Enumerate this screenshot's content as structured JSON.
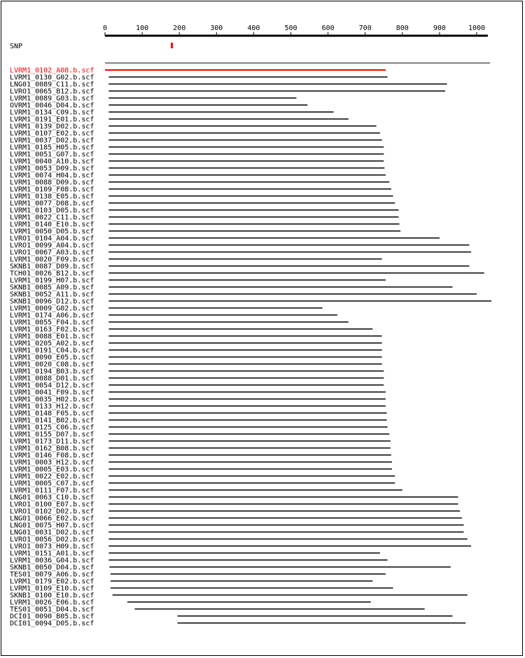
{
  "axis": {
    "ticks": [
      0,
      100,
      200,
      300,
      400,
      500,
      600,
      700,
      800,
      900,
      1000
    ],
    "max": 1030
  },
  "snp": {
    "label": "SNP",
    "position": 180,
    "color": "#ff0000"
  },
  "colors": {
    "highlight": "#ff0000",
    "default": "#000000"
  },
  "reads": [
    {
      "name": "LVRM1_0102_A08.b.scf",
      "start": 0,
      "end": 755,
      "highlight": true
    },
    {
      "name": "LVRM1_0130_G02.b.scf",
      "start": 10,
      "end": 760
    },
    {
      "name": "LNG01_0089_C11.b.scf",
      "start": 10,
      "end": 920
    },
    {
      "name": "LVRO1_0065_B12.b.scf",
      "start": 10,
      "end": 915
    },
    {
      "name": "LVRM1_0089_G03.b.scf",
      "start": 10,
      "end": 515
    },
    {
      "name": "OVRM1_0046_D04.b.scf",
      "start": 10,
      "end": 545
    },
    {
      "name": "LVRM1_0134_C09.b.scf",
      "start": 10,
      "end": 615
    },
    {
      "name": "LVRM1_0191_E01.b.scf",
      "start": 10,
      "end": 655
    },
    {
      "name": "LVRM1_0139_D02.b.scf",
      "start": 10,
      "end": 730
    },
    {
      "name": "LVRM1_0107_E02.b.scf",
      "start": 10,
      "end": 740
    },
    {
      "name": "LVRM1_0037_D02.b.scf",
      "start": 10,
      "end": 745
    },
    {
      "name": "LVRM1_0185_H05.b.scf",
      "start": 10,
      "end": 750
    },
    {
      "name": "LVRM1_0051_G07.b.scf",
      "start": 10,
      "end": 750
    },
    {
      "name": "LVRM1_0040_A10.b.scf",
      "start": 10,
      "end": 750
    },
    {
      "name": "LVRM1_0053_D09.b.scf",
      "start": 10,
      "end": 752
    },
    {
      "name": "LVRM1_0074_H04.b.scf",
      "start": 10,
      "end": 755
    },
    {
      "name": "LVRM1_0088_D09.b.scf",
      "start": 10,
      "end": 765
    },
    {
      "name": "LVRM1_0109_F08.b.scf",
      "start": 10,
      "end": 770
    },
    {
      "name": "LVRM1_0138_E05.b.scf",
      "start": 10,
      "end": 775
    },
    {
      "name": "LVRM1_0077_D08.b.scf",
      "start": 10,
      "end": 780
    },
    {
      "name": "LVRM1_0103_D05.b.scf",
      "start": 10,
      "end": 790
    },
    {
      "name": "LVRM1_0022_C11.b.scf",
      "start": 10,
      "end": 790
    },
    {
      "name": "LVRM1_0140_E10.b.scf",
      "start": 10,
      "end": 792
    },
    {
      "name": "LVRM1_0050_D05.b.scf",
      "start": 10,
      "end": 795
    },
    {
      "name": "LVRO1_0104_A04.b.scf",
      "start": 10,
      "end": 900
    },
    {
      "name": "LVRO1_0099_A04.b.scf",
      "start": 10,
      "end": 980
    },
    {
      "name": "LVRO1_0067_A03.b.scf",
      "start": 10,
      "end": 985
    },
    {
      "name": "LVRM1_0020_F09.b.scf",
      "start": 10,
      "end": 745
    },
    {
      "name": "SKNB1_0087_D09.b.scf",
      "start": 10,
      "end": 980
    },
    {
      "name": "TCH01_0026_B12.b.scf",
      "start": 10,
      "end": 1020
    },
    {
      "name": "LVRM1_0199_H07.b.scf",
      "start": 10,
      "end": 755
    },
    {
      "name": "SKNB1_0085_A09.b.scf",
      "start": 10,
      "end": 935
    },
    {
      "name": "SKNB1_0052_A11.b.scf",
      "start": 10,
      "end": 1000
    },
    {
      "name": "SKNB1_0096_D12.b.scf",
      "start": 10,
      "end": 1040
    },
    {
      "name": "LVRM1_0009_G02.b.scf",
      "start": 10,
      "end": 585
    },
    {
      "name": "LVRM1_0174_A06.b.scf",
      "start": 10,
      "end": 625
    },
    {
      "name": "LVRM1_0055_F04.b.scf",
      "start": 10,
      "end": 655
    },
    {
      "name": "LVRM1_0163_F02.b.scf",
      "start": 10,
      "end": 720
    },
    {
      "name": "LVRM1_0088_E01.b.scf",
      "start": 10,
      "end": 745
    },
    {
      "name": "LVRM1_0205_A02.b.scf",
      "start": 10,
      "end": 745
    },
    {
      "name": "LVRM1_0191_C04.b.scf",
      "start": 10,
      "end": 745
    },
    {
      "name": "LVRM1_0090_E05.b.scf",
      "start": 10,
      "end": 745
    },
    {
      "name": "LVRM1_0020_C08.b.scf",
      "start": 10,
      "end": 745
    },
    {
      "name": "LVRM1_0194_B03.b.scf",
      "start": 10,
      "end": 750
    },
    {
      "name": "LVRM1_0088_D01.b.scf",
      "start": 10,
      "end": 750
    },
    {
      "name": "LVRM1_0054_D12.b.scf",
      "start": 10,
      "end": 750
    },
    {
      "name": "LVRM1_0041_F09.b.scf",
      "start": 10,
      "end": 755
    },
    {
      "name": "LVRM1_0035_H02.b.scf",
      "start": 10,
      "end": 755
    },
    {
      "name": "LVRM1_0133_H12.b.scf",
      "start": 10,
      "end": 755
    },
    {
      "name": "LVRM1_0148_F05.b.scf",
      "start": 10,
      "end": 758
    },
    {
      "name": "LVRM1_0141_B02.b.scf",
      "start": 10,
      "end": 758
    },
    {
      "name": "LVRM1_0125_C06.b.scf",
      "start": 10,
      "end": 760
    },
    {
      "name": "LVRM1_0155_D07.b.scf",
      "start": 10,
      "end": 765
    },
    {
      "name": "LVRM1_0173_D11.b.scf",
      "start": 10,
      "end": 768
    },
    {
      "name": "LVRM1_0162_B08.b.scf",
      "start": 10,
      "end": 768
    },
    {
      "name": "LVRM1_0146_F08.b.scf",
      "start": 10,
      "end": 770
    },
    {
      "name": "LVRM1_0003_H12.b.scf",
      "start": 10,
      "end": 772
    },
    {
      "name": "LVRM1_0005_E03.b.scf",
      "start": 10,
      "end": 772
    },
    {
      "name": "LVRM1_0022_E02.b.scf",
      "start": 10,
      "end": 780
    },
    {
      "name": "LVRM1_0005_C07.b.scf",
      "start": 10,
      "end": 780
    },
    {
      "name": "LVRM1_0111_F07.b.scf",
      "start": 10,
      "end": 800
    },
    {
      "name": "LNG01_0063_C10.b.scf",
      "start": 10,
      "end": 950
    },
    {
      "name": "LVRO1_0100_E07.b.scf",
      "start": 10,
      "end": 950
    },
    {
      "name": "LVRO1_0102_D02.b.scf",
      "start": 10,
      "end": 955
    },
    {
      "name": "LNG01_0066_E02.b.scf",
      "start": 10,
      "end": 960
    },
    {
      "name": "LNG01_0075_H07.b.scf",
      "start": 10,
      "end": 965
    },
    {
      "name": "LNG01_0031_D02.b.scf",
      "start": 10,
      "end": 965
    },
    {
      "name": "LVRO1_0056_D02.b.scf",
      "start": 10,
      "end": 975
    },
    {
      "name": "LVRO1_0073_H09.b.scf",
      "start": 10,
      "end": 985
    },
    {
      "name": "LVRM1_0151_A01.b.scf",
      "start": 10,
      "end": 740
    },
    {
      "name": "LVRM1_0036_G04.b.scf",
      "start": 10,
      "end": 760
    },
    {
      "name": "SKNB1_0050_D04.b.scf",
      "start": 12,
      "end": 930
    },
    {
      "name": "TES01_0079_A06.b.scf",
      "start": 15,
      "end": 755
    },
    {
      "name": "LVRM1_0179_E02.b.scf",
      "start": 15,
      "end": 720
    },
    {
      "name": "LVRM1_0109_E10.b.scf",
      "start": 15,
      "end": 775
    },
    {
      "name": "SKNB1_0100_E10.b.scf",
      "start": 20,
      "end": 975
    },
    {
      "name": "LVRM1_0026_E06.b.scf",
      "start": 60,
      "end": 715
    },
    {
      "name": "TES01_0051_D04.b.scf",
      "start": 80,
      "end": 860
    },
    {
      "name": "DCI01_0090_B05.b.scf",
      "start": 195,
      "end": 935
    },
    {
      "name": "DCI01_0094_D05.b.scf",
      "start": 195,
      "end": 970
    }
  ]
}
